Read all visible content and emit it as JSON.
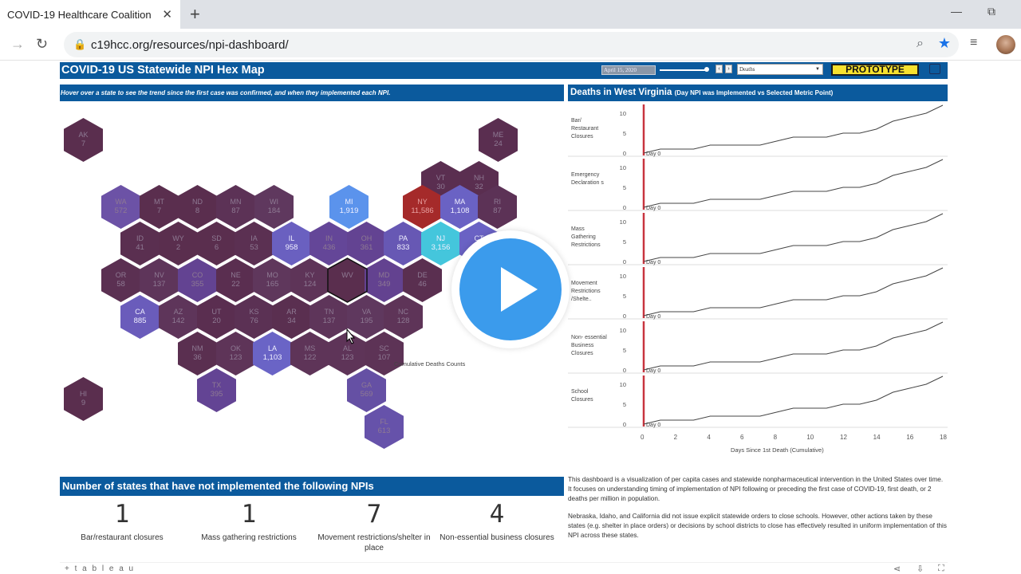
{
  "browser": {
    "tab_title": "COVID-19 Healthcare Coalition",
    "tab_close": "✕",
    "new_tab": "+",
    "url": "c19hcc.org/resources/npi-dashboard/",
    "minimize": "—",
    "restore": "⧉",
    "back": "→",
    "reload": "↻"
  },
  "dashboard": {
    "title": "COVID-19 US Statewide NPI Hex Map",
    "date_value": "April 15, 2020",
    "metric_value": "Deaths",
    "prototype_label": "PROTOTYPE",
    "map_instruction": "Hover over a state to see the trend since the first case was confirmed, and when  they implemented each NPI.",
    "chart_title": "Deaths in West Virginia",
    "chart_subtitle": "(Day  NPI was Implemented vs Selected Metric Point)",
    "legend_text": "Cumulative Deaths Counts",
    "states": [
      {
        "abbr": "AK",
        "value": "7",
        "c": "#5a2e4e"
      },
      {
        "abbr": "ME",
        "value": "24",
        "c": "#5a2e50"
      },
      {
        "abbr": "VT",
        "value": "30",
        "c": "#5a2e50"
      },
      {
        "abbr": "NH",
        "value": "32",
        "c": "#5a2e50"
      },
      {
        "abbr": "WA",
        "value": "572",
        "c": "#6c52a6"
      },
      {
        "abbr": "MT",
        "value": "7",
        "c": "#5a2e4e"
      },
      {
        "abbr": "ND",
        "value": "8",
        "c": "#5a2e4e"
      },
      {
        "abbr": "MN",
        "value": "87",
        "c": "#5c3256"
      },
      {
        "abbr": "WI",
        "value": "184",
        "c": "#5f385e"
      },
      {
        "abbr": "MI",
        "value": "1,919",
        "c": "#5b93ec"
      },
      {
        "abbr": "NY",
        "value": "11,586",
        "c": "#a52a2a"
      },
      {
        "abbr": "MA",
        "value": "1,108",
        "c": "#6a62c4"
      },
      {
        "abbr": "RI",
        "value": "87",
        "c": "#5c3256"
      },
      {
        "abbr": "ID",
        "value": "41",
        "c": "#5a2f50"
      },
      {
        "abbr": "WY",
        "value": "2",
        "c": "#5a2e4e"
      },
      {
        "abbr": "SD",
        "value": "6",
        "c": "#5a2e4e"
      },
      {
        "abbr": "IA",
        "value": "53",
        "c": "#5b3052"
      },
      {
        "abbr": "IL",
        "value": "958",
        "c": "#6a60c0"
      },
      {
        "abbr": "IN",
        "value": "436",
        "c": "#644698"
      },
      {
        "abbr": "OH",
        "value": "361",
        "c": "#634392"
      },
      {
        "abbr": "PA",
        "value": "833",
        "c": "#6758b4"
      },
      {
        "abbr": "NJ",
        "value": "3,156",
        "c": "#44c6dc"
      },
      {
        "abbr": "CT",
        "value": "",
        "c": "#6a62c4"
      },
      {
        "abbr": "OR",
        "value": "58",
        "c": "#5b3052"
      },
      {
        "abbr": "NV",
        "value": "137",
        "c": "#5e355a"
      },
      {
        "abbr": "CO",
        "value": "355",
        "c": "#634392"
      },
      {
        "abbr": "NE",
        "value": "22",
        "c": "#5a2e50"
      },
      {
        "abbr": "MO",
        "value": "165",
        "c": "#5f375c"
      },
      {
        "abbr": "KY",
        "value": "124",
        "c": "#5e3458"
      },
      {
        "abbr": "WV",
        "value": "",
        "c": "#5a2e4e"
      },
      {
        "abbr": "MD",
        "value": "349",
        "c": "#634290"
      },
      {
        "abbr": "DE",
        "value": "46",
        "c": "#5a2f50"
      },
      {
        "abbr": "CA",
        "value": "885",
        "c": "#6a5cbb"
      },
      {
        "abbr": "AZ",
        "value": "142",
        "c": "#5e355a"
      },
      {
        "abbr": "UT",
        "value": "20",
        "c": "#5a2e50"
      },
      {
        "abbr": "KS",
        "value": "76",
        "c": "#5b3154"
      },
      {
        "abbr": "AR",
        "value": "34",
        "c": "#5a2f50"
      },
      {
        "abbr": "TN",
        "value": "137",
        "c": "#5e355a"
      },
      {
        "abbr": "VA",
        "value": "195",
        "c": "#5f385e"
      },
      {
        "abbr": "NC",
        "value": "128",
        "c": "#5e3458"
      },
      {
        "abbr": "NM",
        "value": "36",
        "c": "#5a2f50"
      },
      {
        "abbr": "OK",
        "value": "123",
        "c": "#5e3458"
      },
      {
        "abbr": "LA",
        "value": "1,103",
        "c": "#6a64c6"
      },
      {
        "abbr": "MS",
        "value": "122",
        "c": "#5e3458"
      },
      {
        "abbr": "AL",
        "value": "123",
        "c": "#5e3458"
      },
      {
        "abbr": "SC",
        "value": "107",
        "c": "#5d3356"
      },
      {
        "abbr": "TX",
        "value": "395",
        "c": "#634494"
      },
      {
        "abbr": "GA",
        "value": "569",
        "c": "#6550a4"
      },
      {
        "abbr": "FL",
        "value": "613",
        "c": "#6652aa"
      },
      {
        "abbr": "HI",
        "value": "9",
        "c": "#5a2e4e"
      }
    ],
    "npi_rows": [
      {
        "label": "Bar/ Restaurant Closures"
      },
      {
        "label": "Emergency Declaration s"
      },
      {
        "label": "Mass Gathering Restrictions"
      },
      {
        "label": "Movement Restrictions /Shelte.."
      },
      {
        "label": "Non- essential Business Closures"
      },
      {
        "label": "School Closures"
      }
    ],
    "y_ticks": [
      "10",
      "5",
      "0"
    ],
    "day_label": "Day 0",
    "x_ticks": [
      "0",
      "2",
      "4",
      "6",
      "8",
      "10",
      "12",
      "14",
      "16",
      "18"
    ],
    "x_title": "Days Since 1st Death (Cumulative)",
    "bottom_title": "Number of states that have not implemented the following NPIs",
    "stats": [
      {
        "num": "1",
        "label": "Bar/restaurant closures"
      },
      {
        "num": "1",
        "label": "Mass gathering restrictions"
      },
      {
        "num": "7",
        "label": "Movement restrictions/shelter in place"
      },
      {
        "num": "4",
        "label": "Non-essential business closures"
      }
    ],
    "desc1": "This dashboard is a visualization of per capita cases and statewide nonpharmaceutical intervention in the United States over time. It focuses on understanding timing of implementation of NPI following or preceding the first case of COVID-19, first death, or 2 deaths per million in population.",
    "desc2": "Nebraska, Idaho, and California did not issue explicit statewide orders to close schools. However, other actions taken by these states (e.g. shelter in place orders) or decisions by school districts to close has effectively resulted in uniform implementation of this NPI across these states.",
    "footer_brand": "+ t a b l e a u"
  },
  "chart_data": {
    "type": "line",
    "title": "Deaths in West Virginia",
    "xlabel": "Days Since 1st Death (Cumulative)",
    "ylabel": "",
    "x": [
      0,
      1,
      2,
      3,
      4,
      5,
      6,
      7,
      8,
      9,
      10,
      11,
      12,
      13,
      14,
      15,
      16,
      17,
      18
    ],
    "series": [
      {
        "values": [
          0,
          1,
          1,
          1,
          2,
          2,
          2,
          2,
          3,
          4,
          4,
          4,
          5,
          5,
          6,
          8,
          9,
          10,
          12
        ]
      }
    ],
    "panels": [
      "Bar/ Restaurant Closures",
      "Emergency Declaration s",
      "Mass Gathering Restrictions",
      "Movement Restrictions /Shelte..",
      "Non- essential Business Closures",
      "School Closures"
    ],
    "ylim": [
      0,
      12
    ],
    "xlim": [
      0,
      18
    ],
    "npi_day": 0
  }
}
